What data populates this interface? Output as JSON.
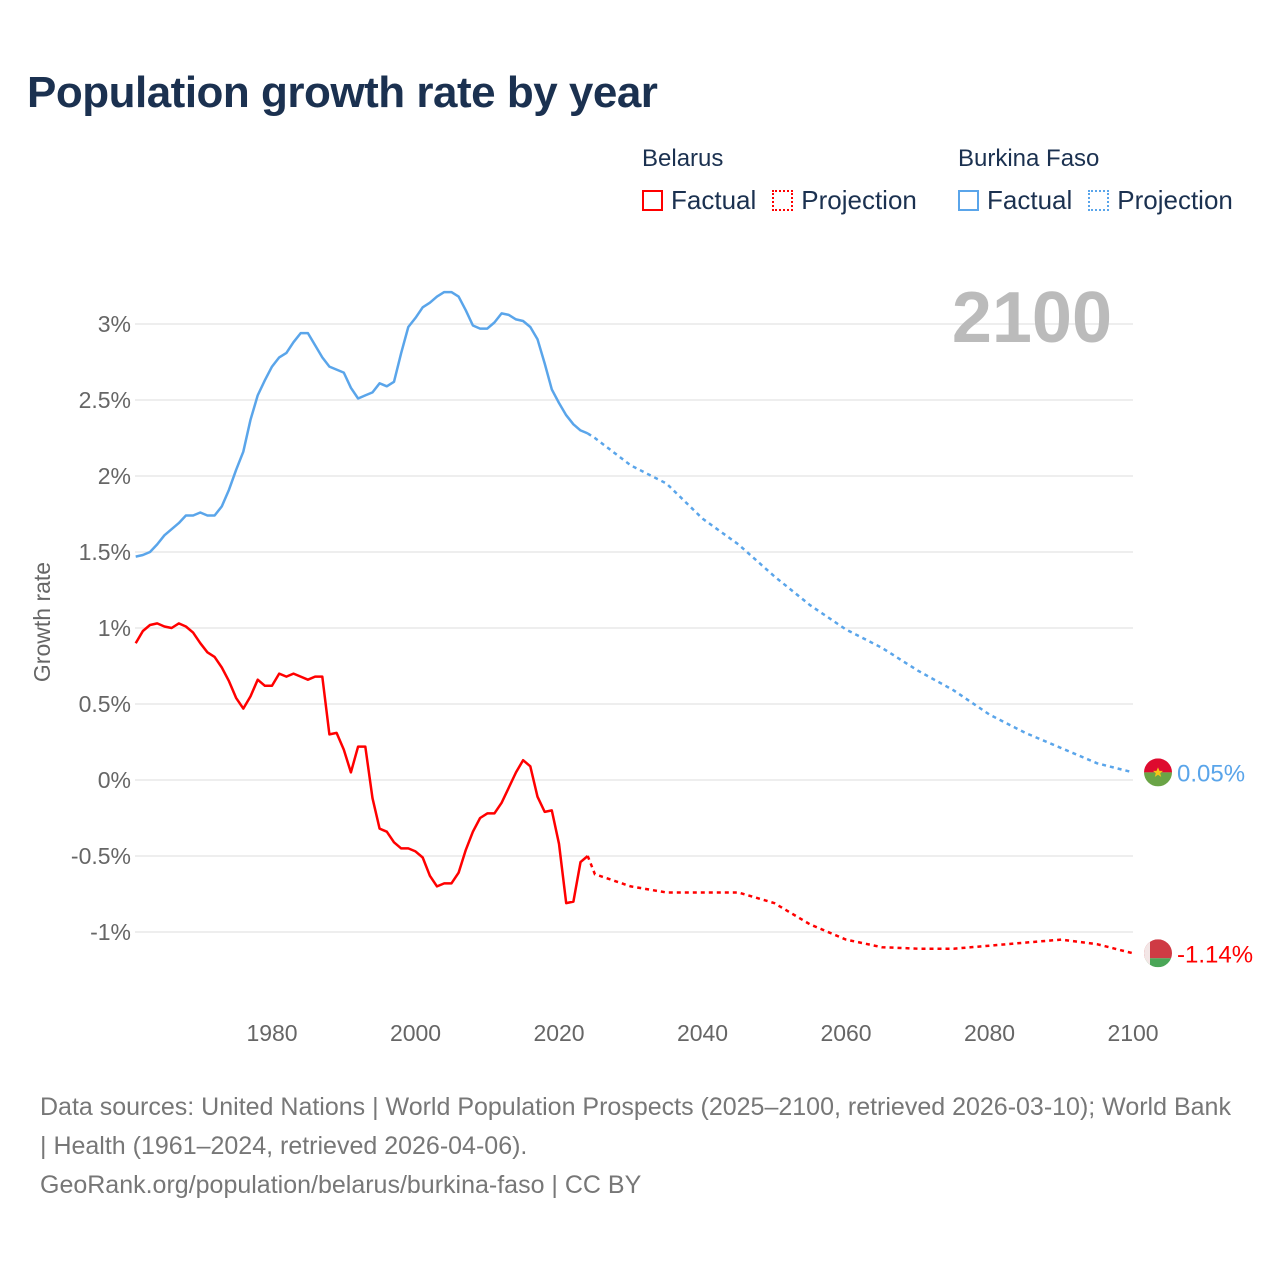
{
  "title": "Population growth rate by year",
  "legend": {
    "groups": [
      {
        "name": "Belarus",
        "factual": "Factual",
        "projection": "Projection",
        "color": "#ff0000"
      },
      {
        "name": "Burkina Faso",
        "factual": "Factual",
        "projection": "Projection",
        "color": "#5aa5ea"
      }
    ]
  },
  "chart_data": {
    "type": "line",
    "title": "Population growth rate by year",
    "ylabel": "Growth rate",
    "xlabel": "",
    "year_label": "2100",
    "xlim": [
      1961,
      2100
    ],
    "ylim": [
      -1.5,
      3.5
    ],
    "x_ticks": [
      1980,
      2000,
      2020,
      2040,
      2060,
      2080,
      2100
    ],
    "y_ticks": [
      {
        "v": 3,
        "label": "3%"
      },
      {
        "v": 2.5,
        "label": "2.5%"
      },
      {
        "v": 2,
        "label": "2%"
      },
      {
        "v": 1.5,
        "label": "1.5%"
      },
      {
        "v": 1,
        "label": "1%"
      },
      {
        "v": 0.5,
        "label": "0.5%"
      },
      {
        "v": 0,
        "label": "0%"
      },
      {
        "v": -0.5,
        "label": "-0.5%"
      },
      {
        "v": -1,
        "label": "-1%"
      }
    ],
    "grid": true,
    "series": [
      {
        "name": "Burkina Faso",
        "color": "#5aa5ea",
        "end_label": "0.05%",
        "flag": "burkina-faso",
        "factual": {
          "x": [
            1961,
            1962,
            1963,
            1964,
            1965,
            1966,
            1967,
            1968,
            1969,
            1970,
            1971,
            1972,
            1973,
            1974,
            1975,
            1976,
            1977,
            1978,
            1979,
            1980,
            1981,
            1982,
            1983,
            1984,
            1985,
            1986,
            1987,
            1988,
            1989,
            1990,
            1991,
            1992,
            1993,
            1994,
            1995,
            1996,
            1997,
            1998,
            1999,
            2000,
            2001,
            2002,
            2003,
            2004,
            2005,
            2006,
            2007,
            2008,
            2009,
            2010,
            2011,
            2012,
            2013,
            2014,
            2015,
            2016,
            2017,
            2018,
            2019,
            2020,
            2021,
            2022,
            2023,
            2024
          ],
          "y": [
            1.47,
            1.48,
            1.5,
            1.55,
            1.61,
            1.65,
            1.69,
            1.74,
            1.74,
            1.76,
            1.74,
            1.74,
            1.8,
            1.91,
            2.04,
            2.16,
            2.37,
            2.53,
            2.63,
            2.72,
            2.78,
            2.81,
            2.88,
            2.94,
            2.94,
            2.86,
            2.78,
            2.72,
            2.7,
            2.68,
            2.58,
            2.51,
            2.53,
            2.55,
            2.61,
            2.59,
            2.62,
            2.81,
            2.98,
            3.04,
            3.11,
            3.14,
            3.18,
            3.21,
            3.21,
            3.18,
            3.09,
            2.99,
            2.97,
            2.97,
            3.01,
            3.07,
            3.06,
            3.03,
            3.02,
            2.98,
            2.9,
            2.74,
            2.57,
            2.48,
            2.4,
            2.34,
            2.3,
            2.28
          ]
        },
        "projection": {
          "x": [
            2024,
            2025,
            2030,
            2035,
            2040,
            2045,
            2050,
            2055,
            2060,
            2065,
            2070,
            2075,
            2080,
            2085,
            2090,
            2095,
            2100
          ],
          "y": [
            2.28,
            2.25,
            2.07,
            1.95,
            1.72,
            1.55,
            1.34,
            1.15,
            0.99,
            0.87,
            0.72,
            0.59,
            0.43,
            0.31,
            0.21,
            0.11,
            0.05
          ]
        }
      },
      {
        "name": "Belarus",
        "color": "#ff0000",
        "end_label": "-1.14%",
        "flag": "belarus",
        "factual": {
          "x": [
            1961,
            1962,
            1963,
            1964,
            1965,
            1966,
            1967,
            1968,
            1969,
            1970,
            1971,
            1972,
            1973,
            1974,
            1975,
            1976,
            1977,
            1978,
            1979,
            1980,
            1981,
            1982,
            1983,
            1984,
            1985,
            1986,
            1987,
            1988,
            1989,
            1990,
            1991,
            1992,
            1993,
            1994,
            1995,
            1996,
            1997,
            1998,
            1999,
            2000,
            2001,
            2002,
            2003,
            2004,
            2005,
            2006,
            2007,
            2008,
            2009,
            2010,
            2011,
            2012,
            2013,
            2014,
            2015,
            2016,
            2017,
            2018,
            2019,
            2020,
            2021,
            2022,
            2023,
            2024
          ],
          "y": [
            0.9,
            0.98,
            1.02,
            1.03,
            1.01,
            1.0,
            1.03,
            1.01,
            0.97,
            0.9,
            0.84,
            0.81,
            0.74,
            0.65,
            0.54,
            0.47,
            0.55,
            0.66,
            0.62,
            0.62,
            0.7,
            0.68,
            0.7,
            0.68,
            0.66,
            0.68,
            0.68,
            0.3,
            0.31,
            0.2,
            0.05,
            0.22,
            0.22,
            -0.12,
            -0.32,
            -0.34,
            -0.41,
            -0.45,
            -0.45,
            -0.47,
            -0.51,
            -0.63,
            -0.7,
            -0.68,
            -0.68,
            -0.61,
            -0.46,
            -0.34,
            -0.25,
            -0.22,
            -0.22,
            -0.15,
            -0.05,
            0.05,
            0.13,
            0.09,
            -0.11,
            -0.21,
            -0.2,
            -0.42,
            -0.81,
            -0.8,
            -0.54,
            -0.5
          ]
        },
        "projection": {
          "x": [
            2024,
            2025,
            2030,
            2035,
            2040,
            2045,
            2050,
            2055,
            2060,
            2065,
            2070,
            2075,
            2080,
            2085,
            2090,
            2095,
            2100
          ],
          "y": [
            -0.5,
            -0.62,
            -0.7,
            -0.74,
            -0.74,
            -0.74,
            -0.81,
            -0.95,
            -1.05,
            -1.1,
            -1.11,
            -1.11,
            -1.09,
            -1.07,
            -1.05,
            -1.08,
            -1.14
          ]
        }
      }
    ]
  },
  "footer": {
    "sources": "Data sources: United Nations | World Population Prospects (2025–2100, retrieved 2026-03-10); World Bank | Health (1961–2024, retrieved 2026-04-06).",
    "credit": "GeoRank.org/population/belarus/burkina-faso | CC BY"
  }
}
